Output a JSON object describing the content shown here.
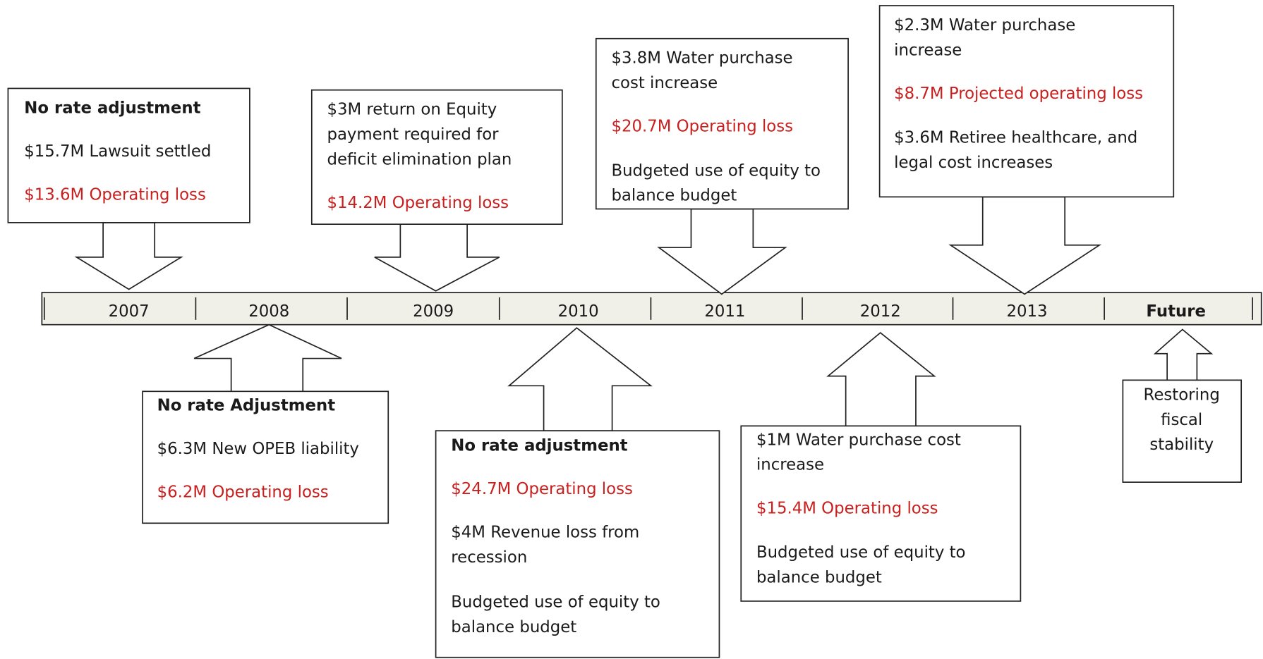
{
  "timeline": [
    "2007",
    "2008",
    "2009",
    "2010",
    "2011",
    "2012",
    "2013",
    "Future"
  ],
  "callouts": [
    {
      "items": [
        {
          "style": "bold",
          "lines": [
            "No rate adjustment"
          ]
        },
        {
          "style": "normal",
          "lines": [
            "$15.7M Lawsuit settled"
          ]
        },
        {
          "style": "red",
          "lines": [
            "$13.6M Operating loss"
          ]
        }
      ]
    },
    {
      "items": [
        {
          "style": "normal",
          "lines": [
            "$3M return on Equity",
            "payment required for",
            "deficit elimination plan"
          ]
        },
        {
          "style": "red",
          "lines": [
            "$14.2M Operating loss"
          ]
        }
      ]
    },
    {
      "items": [
        {
          "style": "normal",
          "lines": [
            "$3.8M Water purchase",
            "cost increase"
          ]
        },
        {
          "style": "red",
          "lines": [
            "$20.7M Operating loss"
          ]
        },
        {
          "style": "normal",
          "lines": [
            "Budgeted use of equity to",
            "balance budget"
          ]
        }
      ]
    },
    {
      "items": [
        {
          "style": "normal",
          "lines": [
            "$2.3M Water purchase",
            "increase"
          ]
        },
        {
          "style": "red",
          "lines": [
            "$8.7M Projected operating loss"
          ]
        },
        {
          "style": "normal",
          "lines": [
            "$3.6M Retiree healthcare, and",
            "legal cost increases"
          ]
        }
      ]
    },
    {
      "items": [
        {
          "style": "bold",
          "lines": [
            "No rate Adjustment"
          ]
        },
        {
          "style": "normal",
          "lines": [
            "$6.3M New OPEB liability"
          ]
        },
        {
          "style": "red",
          "lines": [
            "$6.2M Operating loss"
          ]
        }
      ]
    },
    {
      "items": [
        {
          "style": "bold",
          "lines": [
            "No rate adjustment"
          ]
        },
        {
          "style": "red",
          "lines": [
            "$24.7M Operating loss"
          ]
        },
        {
          "style": "normal",
          "lines": [
            "$4M Revenue loss from",
            "recession"
          ]
        },
        {
          "style": "normal",
          "lines": [
            "Budgeted use of equity to",
            "balance budget"
          ]
        }
      ]
    },
    {
      "items": [
        {
          "style": "normal",
          "lines": [
            "$1M Water purchase cost",
            "increase"
          ]
        },
        {
          "style": "red",
          "lines": [
            "$15.4M Operating loss"
          ]
        },
        {
          "style": "normal",
          "lines": [
            "Budgeted use of equity to",
            "balance budget"
          ]
        }
      ]
    },
    {
      "items": [
        {
          "style": "normal",
          "lines": [
            "Restoring",
            "fiscal",
            "stability"
          ]
        }
      ]
    }
  ]
}
